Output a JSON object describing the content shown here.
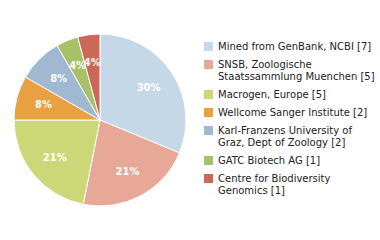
{
  "chart_data": {
    "type": "pie",
    "categories": [
      "Mined from GenBank, NCBI [7]",
      "SNSB, Zoologische\nStaatssammlung Muenchen [5]",
      "Macrogen, Europe [5]",
      "Wellcome Sanger Institute [2]",
      "Karl-Franzens University of\nGraz, Dept of Zoology [2]",
      "GATC Biotech AG [1]",
      "Centre for Biodiversity\nGenomics [1]"
    ],
    "values": [
      30,
      21,
      21,
      8,
      8,
      4,
      4
    ],
    "value_labels": [
      "30%",
      "21%",
      "21%",
      "8%",
      "8%",
      "4%",
      "4%"
    ],
    "colors": [
      "#c5d8e8",
      "#e8a898",
      "#ccd878",
      "#e8a040",
      "#a0b8d0",
      "#a8c068",
      "#cc6858"
    ],
    "data_labels": true,
    "legend": "right"
  }
}
